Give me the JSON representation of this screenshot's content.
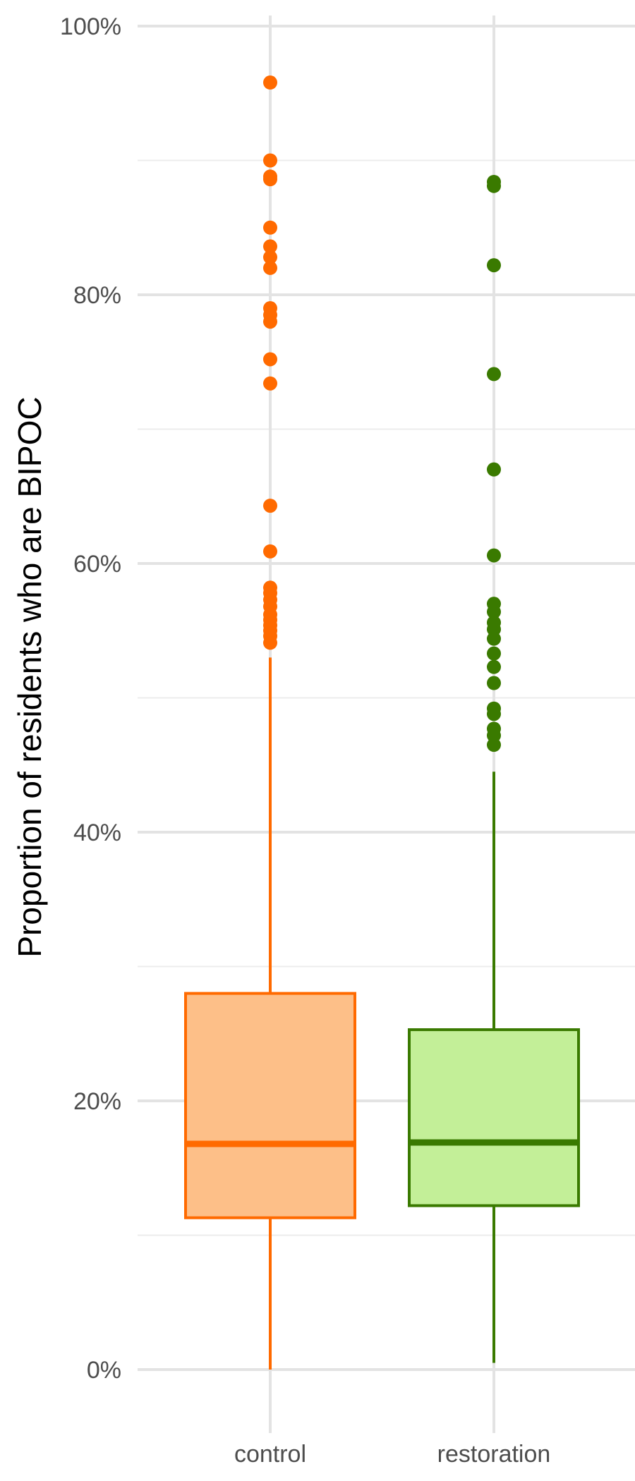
{
  "chart_data": {
    "type": "box",
    "ylabel": "Proportion of residents who are BIPOC",
    "xlabel": "",
    "ylim": [
      -0.05,
      1.01
    ],
    "y_ticks": [
      0,
      0.2,
      0.4,
      0.6,
      0.8,
      1.0
    ],
    "y_tick_labels": [
      "0%",
      "20%",
      "40%",
      "60%",
      "80%",
      "100%"
    ],
    "y_minor_ticks": [
      0.1,
      0.3,
      0.5,
      0.7,
      0.9
    ],
    "grid": true,
    "legend": "none",
    "categories": [
      "control",
      "restoration"
    ],
    "series": [
      {
        "category": "control",
        "color": "#ff6a00",
        "fill": "#fdbf88",
        "whisker_low": 0.0,
        "q1": 0.113,
        "median": 0.168,
        "q3": 0.28,
        "whisker_high": 0.53,
        "outliers": [
          0.958,
          0.9,
          0.888,
          0.886,
          0.85,
          0.836,
          0.828,
          0.82,
          0.79,
          0.785,
          0.78,
          0.752,
          0.734,
          0.643,
          0.609,
          0.582,
          0.578,
          0.573,
          0.568,
          0.562,
          0.558,
          0.554,
          0.55,
          0.546,
          0.541
        ]
      },
      {
        "category": "restoration",
        "color": "#3a7a00",
        "fill": "#c3ef98",
        "whisker_low": 0.005,
        "q1": 0.122,
        "median": 0.169,
        "q3": 0.253,
        "whisker_high": 0.445,
        "outliers": [
          0.884,
          0.881,
          0.822,
          0.741,
          0.67,
          0.606,
          0.57,
          0.564,
          0.556,
          0.551,
          0.544,
          0.533,
          0.523,
          0.511,
          0.492,
          0.488,
          0.477,
          0.472,
          0.465
        ]
      }
    ]
  }
}
